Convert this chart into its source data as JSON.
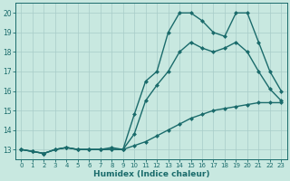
{
  "title": "",
  "xlabel": "Humidex (Indice chaleur)",
  "xlim": [
    -0.5,
    23.5
  ],
  "ylim": [
    12.5,
    20.5
  ],
  "yticks": [
    13,
    14,
    15,
    16,
    17,
    18,
    19,
    20
  ],
  "xticks": [
    0,
    1,
    2,
    3,
    4,
    5,
    6,
    7,
    8,
    9,
    10,
    11,
    12,
    13,
    14,
    15,
    16,
    17,
    18,
    19,
    20,
    21,
    22,
    23
  ],
  "bg_color": "#c8e8e0",
  "grid_color": "#a8ccc8",
  "line_color": "#1a6b6b",
  "line1_x": [
    0,
    1,
    2,
    3,
    4,
    5,
    6,
    7,
    8,
    9,
    10,
    11,
    12,
    13,
    14,
    15,
    16,
    17,
    18,
    19,
    20,
    21,
    22,
    23
  ],
  "line1_y": [
    13.0,
    12.9,
    12.8,
    13.0,
    13.1,
    13.0,
    13.0,
    13.0,
    13.0,
    13.0,
    13.2,
    13.4,
    13.7,
    14.0,
    14.3,
    14.6,
    14.8,
    15.0,
    15.1,
    15.2,
    15.3,
    15.4,
    15.4,
    15.4
  ],
  "line2_x": [
    0,
    1,
    2,
    3,
    4,
    5,
    6,
    7,
    8,
    9,
    10,
    11,
    12,
    13,
    14,
    15,
    16,
    17,
    18,
    19,
    20,
    21,
    22,
    23
  ],
  "line2_y": [
    13.0,
    12.9,
    12.8,
    13.0,
    13.1,
    13.0,
    13.0,
    13.0,
    13.0,
    13.0,
    13.8,
    15.5,
    16.3,
    17.0,
    18.0,
    18.5,
    18.2,
    18.0,
    18.2,
    18.5,
    18.0,
    17.0,
    16.1,
    15.5
  ],
  "line3_x": [
    0,
    1,
    2,
    3,
    4,
    5,
    6,
    7,
    8,
    9,
    10,
    11,
    12,
    13,
    14,
    15,
    16,
    17,
    18,
    19,
    20,
    21,
    22,
    23
  ],
  "line3_y": [
    13.0,
    12.9,
    12.8,
    13.0,
    13.1,
    13.0,
    13.0,
    13.0,
    13.1,
    13.0,
    14.8,
    16.5,
    17.0,
    19.0,
    20.0,
    20.0,
    19.6,
    19.0,
    18.8,
    20.0,
    20.0,
    18.5,
    17.0,
    16.0
  ],
  "marker_size": 2.5,
  "line_width": 1.0
}
